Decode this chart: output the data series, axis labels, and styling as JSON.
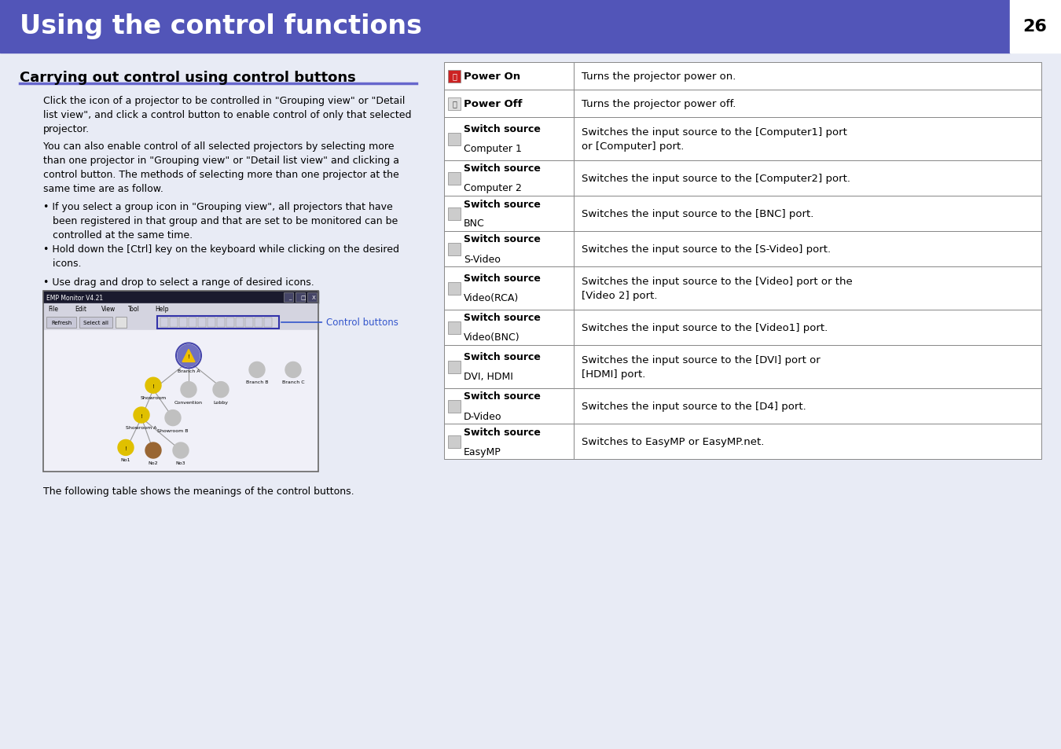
{
  "page_bg": "#e8ebf5",
  "header_bg": "#5255b8",
  "header_text": "Using the control functions",
  "header_text_color": "#ffffff",
  "header_page_num": "26",
  "header_page_num_color": "#000000",
  "header_page_num_bg": "#ffffff",
  "section_title": "Carrying out control using control buttons",
  "section_title_color": "#000000",
  "section_underline_color": "#6666cc",
  "body_text_color": "#000000",
  "table_border_color": "#888888",
  "control_buttons_label": "Control buttons",
  "control_buttons_color": "#3355cc",
  "footer_text": "The following table shows the meanings of the control buttons.",
  "table_rows": [
    {
      "label": "Power On",
      "icon_type": "power_on",
      "description": "Turns the projector power on."
    },
    {
      "label": "Power Off",
      "icon_type": "power_off",
      "description": "Turns the projector power off."
    },
    {
      "label": "Switch source\nComputer 1",
      "icon_type": "sw",
      "description": "Switches the input source to the [Computer1] port\nor [Computer] port."
    },
    {
      "label": "Switch source\nComputer 2",
      "icon_type": "sw",
      "description": "Switches the input source to the [Computer2] port."
    },
    {
      "label": "Switch source\nBNC",
      "icon_type": "sw",
      "description": "Switches the input source to the [BNC] port."
    },
    {
      "label": "Switch source\nS-Video",
      "icon_type": "sw",
      "description": "Switches the input source to the [S-Video] port."
    },
    {
      "label": "Switch source\nVideo(RCA)",
      "icon_type": "sw",
      "description": "Switches the input source to the [Video] port or the\n[Video 2] port."
    },
    {
      "label": "Switch source\nVideo(BNC)",
      "icon_type": "sw",
      "description": "Switches the input source to the [Video1] port."
    },
    {
      "label": "Switch source\nDVI, HDMI",
      "icon_type": "sw",
      "description": "Switches the input source to the [DVI] port or\n[HDMI] port."
    },
    {
      "label": "Switch source\nD-Video",
      "icon_type": "sw",
      "description": "Switches the input source to the [D4] port."
    },
    {
      "label": "Switch source\nEasyMP",
      "icon_type": "sw",
      "description": "Switches to EasyMP or EasyMP.net."
    }
  ]
}
